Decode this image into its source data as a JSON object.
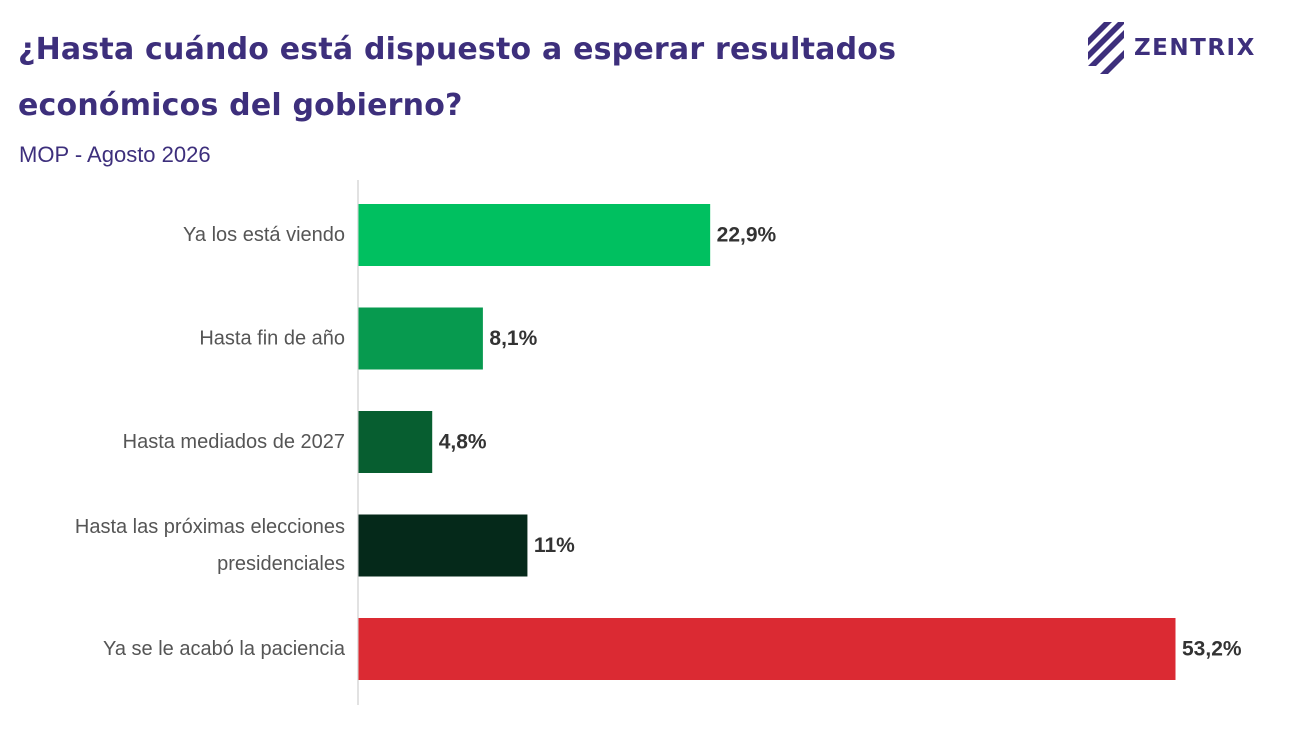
{
  "header": {
    "title": "¿Hasta cuándo está dispuesto a esperar resultados económicos del gobierno?",
    "subtitle": "MOP - Agosto 2026"
  },
  "logo": {
    "text": "ZENTRIX",
    "icon": "diagonal-stripes-logo-icon"
  },
  "colors": {
    "title": "#3d2f7c",
    "axis": "#d9d9d9",
    "label": "#555555",
    "value": "#333333"
  },
  "chart_data": {
    "type": "bar",
    "orientation": "horizontal",
    "title": "¿Hasta cuándo está dispuesto a esperar resultados económicos del gobierno?",
    "subtitle": "MOP - Agosto 2026",
    "categories": [
      [
        "Ya los está viendo"
      ],
      [
        "Hasta fin de año"
      ],
      [
        "Hasta mediados de 2027"
      ],
      [
        "Hasta las próximas elecciones",
        "presidenciales"
      ],
      [
        "Ya se le acabó la paciencia"
      ]
    ],
    "values": [
      22.9,
      8.1,
      4.8,
      11,
      53.2
    ],
    "value_labels": [
      "22,9%",
      "8,1%",
      "4,8%",
      "11%",
      "53,2%"
    ],
    "bar_colors": [
      "#00c060",
      "#079a4f",
      "#075e30",
      "#05291a",
      "#db2a33"
    ],
    "xlim": [
      0,
      53.2
    ],
    "grid": false,
    "legend": "none"
  }
}
